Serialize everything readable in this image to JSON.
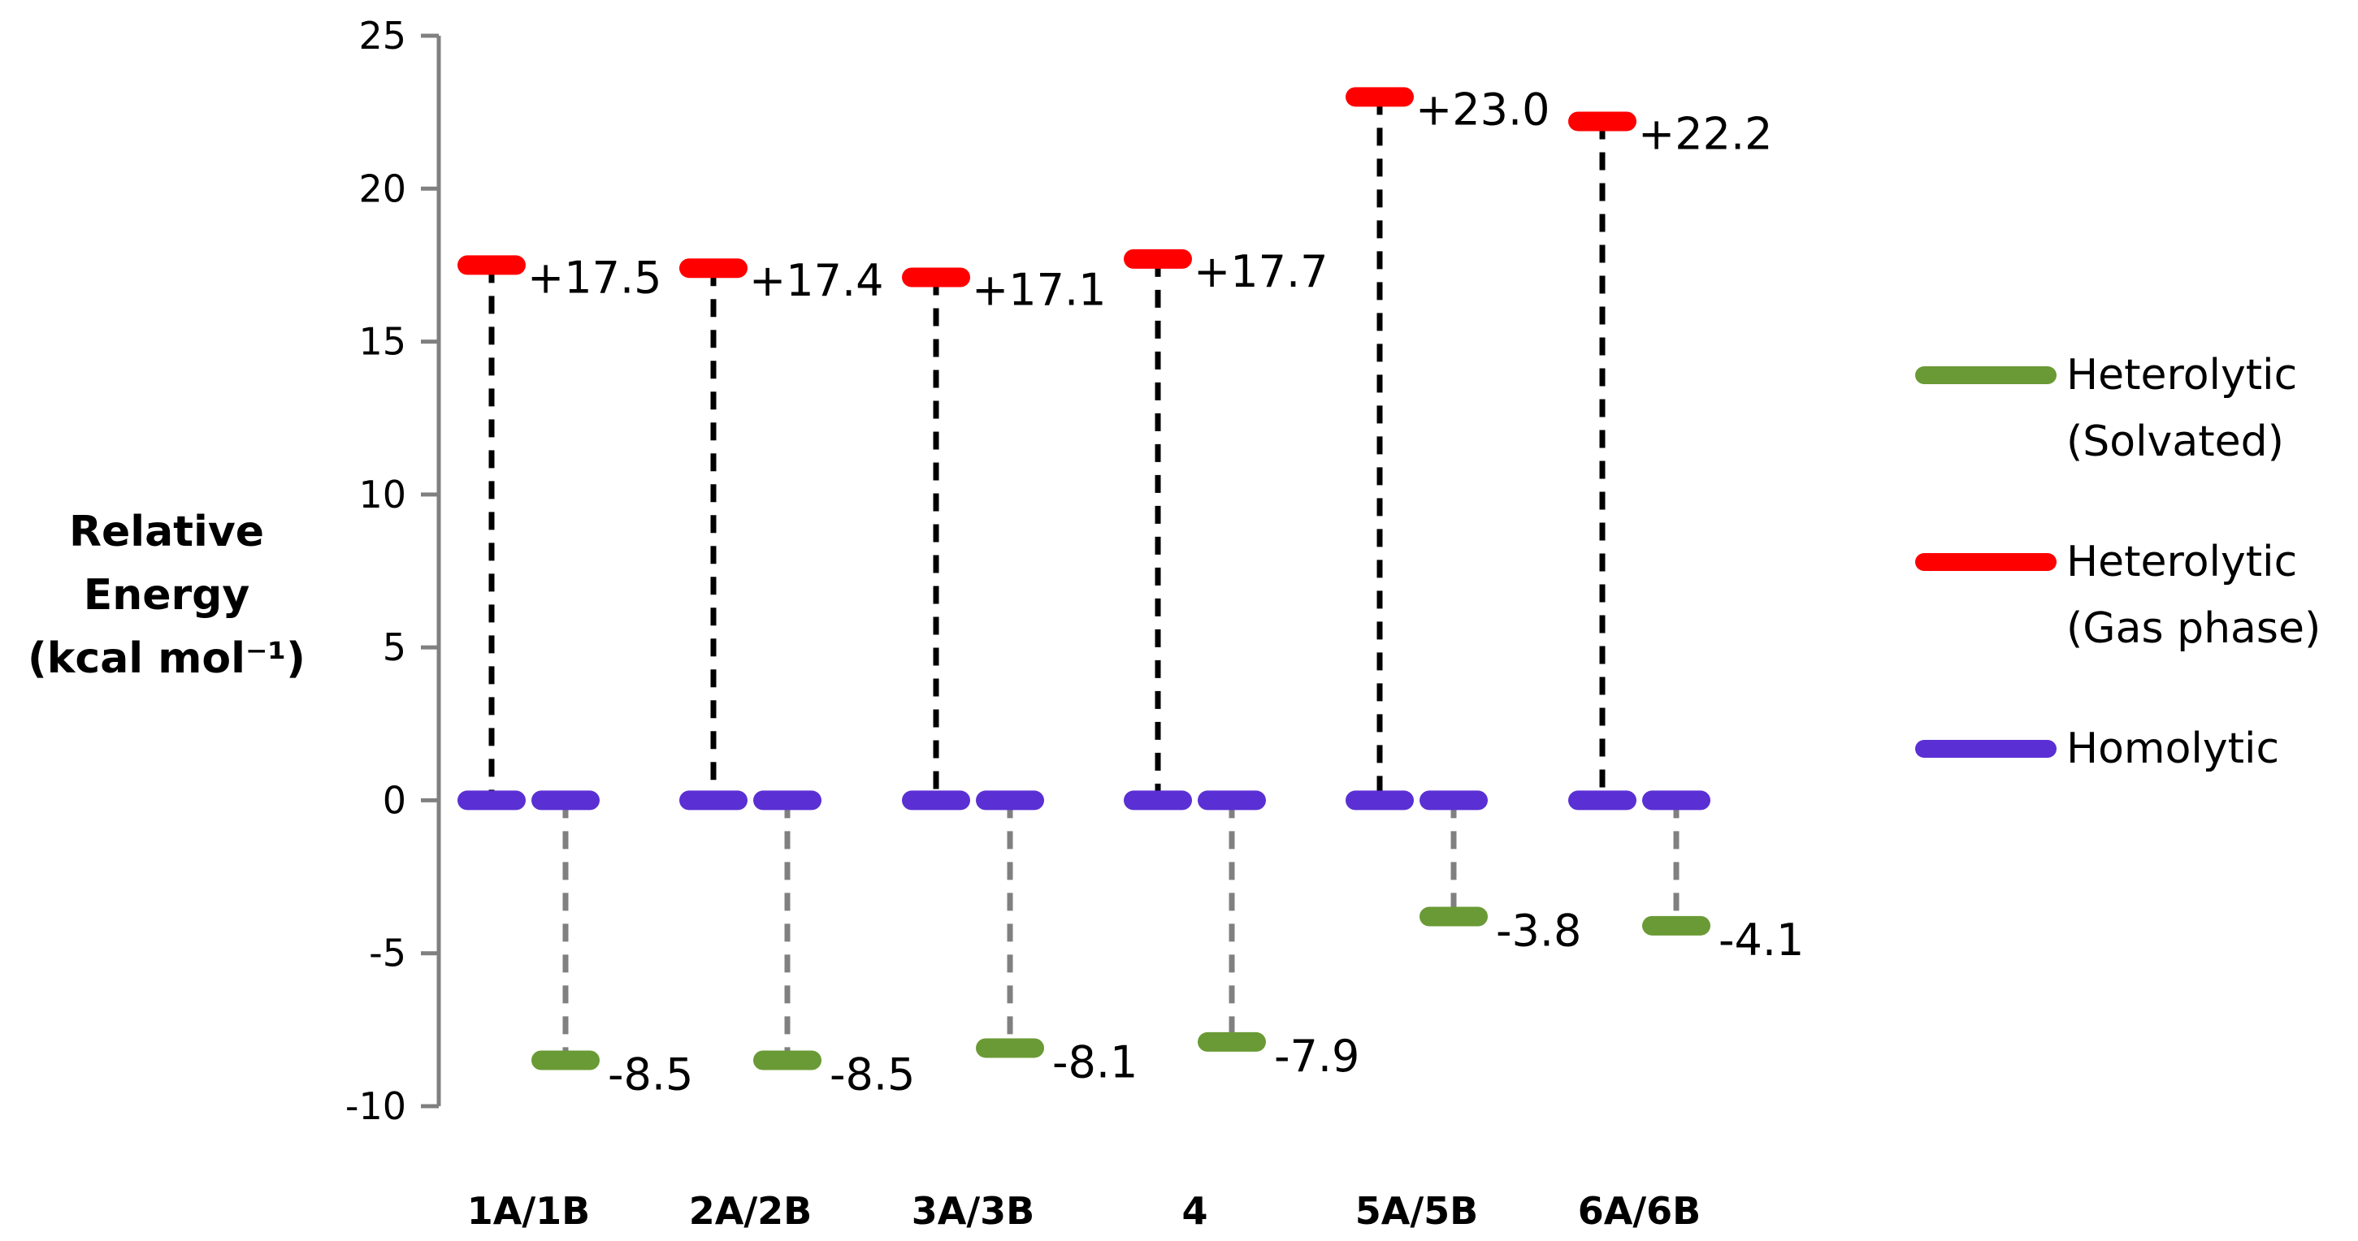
{
  "chart_data": {
    "type": "scatter",
    "ylabel_lines": [
      "Relative",
      "Energy",
      "(kcal mol⁻¹)"
    ],
    "ylim": [
      -10,
      25
    ],
    "yticks": [
      25,
      20,
      15,
      10,
      5,
      0,
      -5,
      -10
    ],
    "grid": false,
    "legend_position": "right",
    "categories": [
      "1A/1B",
      "2A/2B",
      "3A/3B",
      "4",
      "5A/5B",
      "6A/6B"
    ],
    "series": [
      {
        "name": "Heterolytic\n(Solvated)",
        "color": "#6a9a35",
        "values": [
          -8.5,
          -8.5,
          -8.1,
          -7.9,
          -3.8,
          -4.1
        ],
        "labels": [
          "-8.5",
          "-8.5",
          "-8.1",
          "-7.9",
          "-3.8",
          "-4.1"
        ]
      },
      {
        "name": "Heterolytic\n(Gas phase)",
        "color": "#ff0000",
        "values": [
          17.5,
          17.4,
          17.1,
          17.7,
          23.0,
          22.2
        ],
        "labels": [
          "+17.5",
          "+17.4",
          "+17.1",
          "+17.7",
          "+23.0",
          "+22.2"
        ]
      },
      {
        "name": "Homolytic",
        "color": "#5a2fd4",
        "values": [
          0,
          0,
          0,
          0,
          0,
          0
        ]
      }
    ],
    "connector_colors": {
      "gas": "#000000",
      "solvated": "#808080"
    },
    "axis_color": "#808080"
  }
}
